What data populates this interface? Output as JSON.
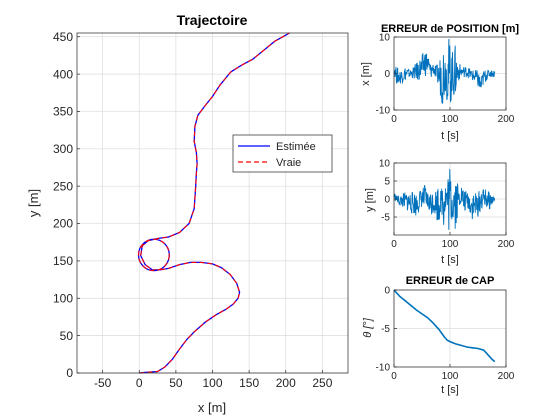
{
  "figure": {
    "background": "#ffffff"
  },
  "chart_data": [
    {
      "id": "traj",
      "type": "line",
      "title": "Trajectoire",
      "xlabel": "x [m]",
      "ylabel": "y [m]",
      "xlim": [
        -85,
        285
      ],
      "ylim": [
        0,
        455
      ],
      "xticks": [
        -50,
        0,
        50,
        100,
        150,
        200,
        250
      ],
      "yticks": [
        0,
        50,
        100,
        150,
        200,
        250,
        300,
        350,
        400,
        450
      ],
      "grid": true,
      "legend": {
        "placement": "center-right",
        "entries": [
          {
            "label": "Estimée",
            "color": "#0000ff",
            "style": "solid"
          },
          {
            "label": "Vraie",
            "color": "#ff0000",
            "style": "dashed"
          }
        ]
      },
      "loop": {
        "center": [
          20,
          158
        ],
        "radius": 21
      },
      "path_points": [
        [
          0,
          0
        ],
        [
          10,
          1
        ],
        [
          25,
          2
        ],
        [
          35,
          8
        ],
        [
          45,
          18
        ],
        [
          55,
          32
        ],
        [
          65,
          45
        ],
        [
          75,
          55
        ],
        [
          90,
          68
        ],
        [
          105,
          78
        ],
        [
          118,
          85
        ],
        [
          128,
          92
        ],
        [
          135,
          100
        ],
        [
          137,
          108
        ],
        [
          133,
          120
        ],
        [
          124,
          132
        ],
        [
          112,
          141
        ],
        [
          100,
          146
        ],
        [
          85,
          148
        ],
        [
          70,
          148
        ],
        [
          55,
          145
        ],
        [
          40,
          140
        ],
        [
          28,
          138
        ],
        [
          18,
          138
        ],
        [
          8,
          145
        ],
        [
          2,
          157
        ],
        [
          4,
          170
        ],
        [
          12,
          177
        ],
        [
          25,
          180
        ],
        [
          40,
          182
        ],
        [
          55,
          188
        ],
        [
          68,
          200
        ],
        [
          75,
          220
        ],
        [
          77,
          250
        ],
        [
          78,
          268
        ],
        [
          79,
          280
        ],
        [
          78,
          295
        ],
        [
          75,
          310
        ],
        [
          76,
          330
        ],
        [
          80,
          345
        ],
        [
          90,
          358
        ],
        [
          100,
          370
        ],
        [
          110,
          385
        ],
        [
          125,
          403
        ],
        [
          140,
          412
        ],
        [
          155,
          420
        ],
        [
          170,
          432
        ],
        [
          185,
          444
        ],
        [
          200,
          452
        ],
        [
          205,
          455
        ]
      ]
    },
    {
      "id": "errx",
      "type": "line",
      "title": "ERREUR de POSITION [m]",
      "xlabel": "t [s]",
      "ylabel": "x [m]",
      "xlim": [
        0,
        200
      ],
      "ylim": [
        -10,
        10
      ],
      "xticks": [
        0,
        100,
        200
      ],
      "yticks": [
        -10,
        0,
        10
      ],
      "grid": true,
      "color": "#0072bd",
      "envelope": [
        [
          0,
          0,
          2
        ],
        [
          5,
          -3,
          2
        ],
        [
          10,
          -3,
          1
        ],
        [
          20,
          -2,
          2
        ],
        [
          30,
          -1,
          1
        ],
        [
          40,
          -2,
          3
        ],
        [
          50,
          -2,
          5
        ],
        [
          55,
          -1,
          7
        ],
        [
          60,
          0,
          6
        ],
        [
          65,
          -2,
          3
        ],
        [
          70,
          0,
          3
        ],
        [
          75,
          -2,
          2
        ],
        [
          80,
          -4,
          3
        ],
        [
          85,
          -8,
          7
        ],
        [
          88,
          -9,
          9
        ],
        [
          92,
          -5,
          6
        ],
        [
          95,
          -8,
          9
        ],
        [
          98,
          -10,
          10
        ],
        [
          102,
          -8,
          8
        ],
        [
          105,
          -5,
          6
        ],
        [
          108,
          -9,
          9
        ],
        [
          112,
          -4,
          5
        ],
        [
          116,
          -2,
          3
        ],
        [
          120,
          -1,
          2
        ],
        [
          130,
          -1,
          2
        ],
        [
          140,
          -2,
          1
        ],
        [
          150,
          -4,
          1
        ],
        [
          155,
          -6,
          -1
        ],
        [
          160,
          -3,
          1
        ],
        [
          170,
          -1,
          1
        ],
        [
          180,
          -1,
          1
        ]
      ]
    },
    {
      "id": "erry",
      "type": "line",
      "title": "",
      "xlabel": "t [s]",
      "ylabel": "y [m]",
      "xlim": [
        0,
        200
      ],
      "ylim": [
        -10,
        10
      ],
      "xticks": [
        0,
        100,
        200
      ],
      "yticks": [
        -5,
        0,
        5,
        10
      ],
      "grid": true,
      "color": "#0072bd",
      "envelope": [
        [
          0,
          0,
          2
        ],
        [
          5,
          -1,
          1
        ],
        [
          10,
          -2,
          1
        ],
        [
          20,
          -3,
          2
        ],
        [
          30,
          -4,
          2
        ],
        [
          40,
          -5,
          2
        ],
        [
          50,
          -2,
          3
        ],
        [
          55,
          -4,
          4
        ],
        [
          60,
          -3,
          2
        ],
        [
          65,
          -5,
          2
        ],
        [
          70,
          -4,
          3
        ],
        [
          75,
          -5,
          3
        ],
        [
          80,
          -8,
          5
        ],
        [
          84,
          -2,
          2
        ],
        [
          88,
          -9,
          9
        ],
        [
          92,
          -4,
          5
        ],
        [
          96,
          -9,
          8
        ],
        [
          100,
          -10,
          10
        ],
        [
          104,
          -6,
          5
        ],
        [
          108,
          -9,
          9
        ],
        [
          112,
          -7,
          7
        ],
        [
          116,
          -3,
          3
        ],
        [
          120,
          -1,
          4
        ],
        [
          125,
          -5,
          3
        ],
        [
          130,
          -2,
          2
        ],
        [
          140,
          -6,
          2
        ],
        [
          150,
          -5,
          2
        ],
        [
          160,
          -2,
          3
        ],
        [
          170,
          -3,
          2
        ],
        [
          180,
          -1,
          1
        ]
      ]
    },
    {
      "id": "cap",
      "type": "line",
      "title": "ERREUR de CAP",
      "xlabel": "t [s]",
      "ylabel": "θ [°]",
      "xlim": [
        0,
        200
      ],
      "ylim": [
        -10,
        0
      ],
      "xticks": [
        0,
        100,
        200
      ],
      "yticks": [
        -10,
        -5,
        0
      ],
      "grid": true,
      "color": "#0072bd",
      "x": [
        0,
        10,
        20,
        30,
        40,
        50,
        60,
        70,
        80,
        90,
        95,
        100,
        110,
        120,
        130,
        140,
        150,
        160,
        165,
        170,
        175,
        180
      ],
      "y": [
        0,
        -0.8,
        -1.4,
        -2.0,
        -2.6,
        -3.1,
        -3.6,
        -4.3,
        -5.1,
        -6.1,
        -6.5,
        -6.7,
        -7.0,
        -7.2,
        -7.4,
        -7.5,
        -7.6,
        -7.8,
        -8.2,
        -8.6,
        -9.0,
        -9.3
      ]
    }
  ]
}
